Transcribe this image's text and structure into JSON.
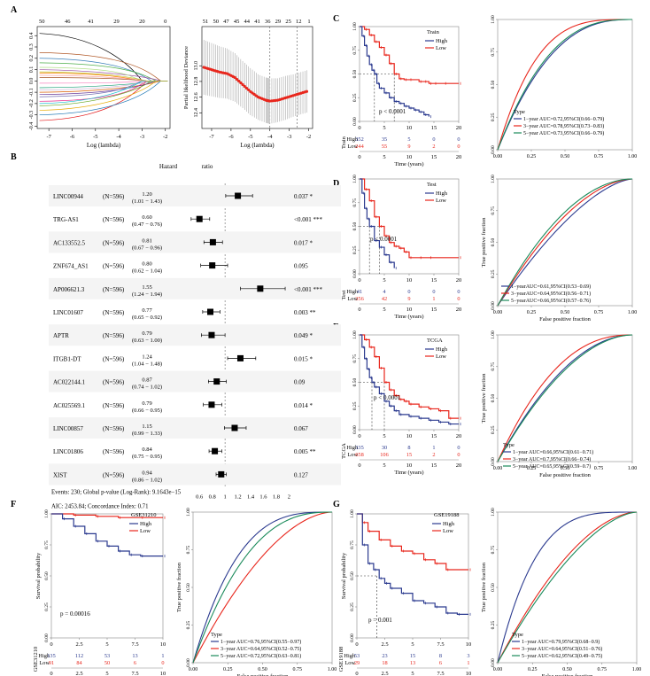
{
  "colors": {
    "high": "#2b3a8f",
    "low": "#e8261c",
    "y1": "#2b3a8f",
    "y3": "#e8261c",
    "y5": "#1a8a5a",
    "grid": "#bbbbbb",
    "lasso_dev": "#e8261c"
  },
  "panels": {
    "A": "A",
    "B": "B",
    "C": "C",
    "D": "D",
    "E": "E",
    "F": "F",
    "G": "G"
  },
  "chart_data": [
    {
      "id": "A_coef",
      "type": "line",
      "title": "",
      "xlabel": "Log (lambda)",
      "ylabel": "",
      "xlim": [
        -7.5,
        -1.8
      ],
      "ylim": [
        -0.42,
        0.48
      ],
      "top_ticks": [
        "50",
        "46",
        "41",
        "29",
        "20",
        "0"
      ],
      "xticks": [
        "-7",
        "-6",
        "-5",
        "-4",
        "-3",
        "-2"
      ],
      "yticks": [
        "0.4",
        "0.3",
        "0.2",
        "0.1",
        "0.0",
        "-0.1",
        "-0.2",
        "-0.3",
        "-0.4"
      ],
      "num_paths": 22
    },
    {
      "id": "A_cv",
      "type": "scatter",
      "title": "",
      "xlabel": "Log (lambda)",
      "ylabel": "Partial likelihood Deviance",
      "xlim": [
        -7.5,
        -1.8
      ],
      "ylim": [
        12.2,
        13.5
      ],
      "top_ticks": [
        "51",
        "50",
        "47",
        "45",
        "44",
        "41",
        "36",
        "29",
        "25",
        "12",
        "1"
      ],
      "xticks": [
        "-7",
        "-6",
        "-5",
        "-4",
        "-3",
        "-2"
      ],
      "yticks": [
        "13.0",
        "12.8",
        "12.6",
        "12.4"
      ],
      "lambda_min": -4.0,
      "lambda_1se": -2.6,
      "x": [
        -7.4,
        -7.0,
        -6.6,
        -6.2,
        -5.8,
        -5.4,
        -5.0,
        -4.6,
        -4.2,
        -4.0,
        -3.6,
        -3.2,
        -2.8,
        -2.4,
        -2.0
      ],
      "y": [
        12.98,
        12.95,
        12.92,
        12.9,
        12.85,
        12.76,
        12.67,
        12.6,
        12.56,
        12.55,
        12.56,
        12.59,
        12.62,
        12.65,
        12.68
      ],
      "err": [
        0.35,
        0.34,
        0.33,
        0.32,
        0.31,
        0.3,
        0.3,
        0.29,
        0.29,
        0.29,
        0.28,
        0.28,
        0.27,
        0.27,
        0.27
      ]
    },
    {
      "id": "B_forest",
      "type": "forest",
      "title": "Hazard ratio",
      "xticks": [
        "0.6",
        "0.8",
        "1",
        "1.2",
        "1.4",
        "1.6",
        "1.8",
        "2"
      ],
      "xlim": [
        0.5,
        2.05
      ],
      "rows": [
        {
          "gene": "LINC00944",
          "n": "(N=596)",
          "hr": "1.20",
          "ci": "(1.01 − 1.43)",
          "hrv": 1.2,
          "lo": 1.01,
          "hi": 1.43,
          "p": "0.037 *"
        },
        {
          "gene": "TRG-AS1",
          "n": "(N=596)",
          "hr": "0.60",
          "ci": "(0.47 − 0.76)",
          "hrv": 0.6,
          "lo": 0.47,
          "hi": 0.76,
          "p": "<0.001 ***"
        },
        {
          "gene": "AC133552.5",
          "n": "(N=596)",
          "hr": "0.81",
          "ci": "(0.67 − 0.96)",
          "hrv": 0.81,
          "lo": 0.67,
          "hi": 0.96,
          "p": "0.017 *"
        },
        {
          "gene": "ZNF674_AS1",
          "n": "(N=596)",
          "hr": "0.80",
          "ci": "(0.62 − 1.04)",
          "hrv": 0.8,
          "lo": 0.62,
          "hi": 1.04,
          "p": "0.095"
        },
        {
          "gene": "AP006621.3",
          "n": "(N=596)",
          "hr": "1.55",
          "ci": "(1.24 − 1.94)",
          "hrv": 1.55,
          "lo": 1.24,
          "hi": 1.94,
          "p": "<0.001 ***"
        },
        {
          "gene": "LINC01607",
          "n": "(N=596)",
          "hr": "0.77",
          "ci": "(0.65 − 0.92)",
          "hrv": 0.77,
          "lo": 0.65,
          "hi": 0.92,
          "p": "0.003 **"
        },
        {
          "gene": "APTR",
          "n": "(N=596)",
          "hr": "0.79",
          "ci": "(0.63 − 1.00)",
          "hrv": 0.79,
          "lo": 0.63,
          "hi": 1.0,
          "p": "0.049 *"
        },
        {
          "gene": "ITGB1-DT",
          "n": "(N=596)",
          "hr": "1.24",
          "ci": "(1.04 − 1.48)",
          "hrv": 1.24,
          "lo": 1.04,
          "hi": 1.48,
          "p": "0.015 *"
        },
        {
          "gene": "AC022144.1",
          "n": "(N=596)",
          "hr": "0.87",
          "ci": "(0.74 − 1.02)",
          "hrv": 0.87,
          "lo": 0.74,
          "hi": 1.02,
          "p": "0.09"
        },
        {
          "gene": "AC025569.1",
          "n": "(N=596)",
          "hr": "0.79",
          "ci": "(0.66 − 0.95)",
          "hrv": 0.79,
          "lo": 0.66,
          "hi": 0.95,
          "p": "0.014 *"
        },
        {
          "gene": "LINC00857",
          "n": "(N=596)",
          "hr": "1.15",
          "ci": "(0.99 − 1.33)",
          "hrv": 1.15,
          "lo": 0.99,
          "hi": 1.33,
          "p": "0.067"
        },
        {
          "gene": "LINC01806",
          "n": "(N=596)",
          "hr": "0.84",
          "ci": "(0.75 − 0.95)",
          "hrv": 0.84,
          "lo": 0.75,
          "hi": 0.95,
          "p": "0.005 **"
        },
        {
          "gene": "XIST",
          "n": "(N=596)",
          "hr": "0.94",
          "ci": "(0.86 − 1.02)",
          "hrv": 0.94,
          "lo": 0.86,
          "hi": 1.02,
          "p": "0.127"
        }
      ],
      "footer1": "Events: 230; Global p-value (Log-Rank): 9.1643e−15",
      "footer2": "AIC: 2453.84; Concordance Index: 0.71"
    },
    {
      "id": "C_km",
      "type": "line",
      "legend_title": "Train",
      "legend": [
        "High",
        "Low"
      ],
      "xlabel": "Time (years)",
      "ylabel": "",
      "xlim": [
        0,
        20
      ],
      "ylim": [
        0,
        1
      ],
      "xticks": [
        "0",
        "5",
        "10",
        "15",
        "20"
      ],
      "yticks": [
        "1.00",
        "0.75",
        "0.50",
        "0.25",
        "0.00"
      ],
      "pvalue": "p < 0.0001",
      "median_high": 3,
      "median_low": 7,
      "high": {
        "x": [
          0,
          0.5,
          1,
          1.5,
          2,
          2.5,
          3,
          3.5,
          4,
          5,
          6,
          7,
          8,
          9,
          10,
          11,
          12,
          13,
          14
        ],
        "y": [
          1,
          0.9,
          0.8,
          0.69,
          0.6,
          0.54,
          0.5,
          0.4,
          0.35,
          0.3,
          0.25,
          0.21,
          0.19,
          0.16,
          0.14,
          0.12,
          0.1,
          0.07,
          0.05
        ]
      },
      "low": {
        "x": [
          0,
          1,
          2,
          3,
          4,
          5,
          6,
          7,
          8,
          9,
          10,
          12,
          13,
          14,
          15,
          17,
          20
        ],
        "y": [
          1,
          0.97,
          0.91,
          0.84,
          0.78,
          0.7,
          0.61,
          0.5,
          0.45,
          0.44,
          0.44,
          0.42,
          0.42,
          0.4,
          0.4,
          0.4,
          0.4
        ]
      },
      "risk_table": {
        "label": "Train",
        "rows": [
          {
            "name": "High",
            "vals": [
              "352",
              "35",
              "5",
              "0",
              "0"
            ]
          },
          {
            "name": "Low",
            "vals": [
              "244",
              "55",
              "9",
              "2",
              "0"
            ]
          }
        ]
      }
    },
    {
      "id": "C_roc",
      "type": "line",
      "legend_title": "Type",
      "legend": [
        "1−year  AUC=0.72,95%CI(0.66−0.79)",
        "3−year  AUC=0.78,95%CI(0.73−0.83)",
        "5−year  AUC=0.73,95%CI(0.66−0.79)"
      ],
      "auc": [
        0.72,
        0.78,
        0.73
      ],
      "xlabel": "",
      "ylabel": "",
      "xticks": [
        "0.00",
        "0.25",
        "0.50",
        "0.75",
        "1.00"
      ],
      "yticks": [
        "1.00",
        "0.75",
        "0.50",
        "0.25",
        "0.00"
      ]
    },
    {
      "id": "D_km",
      "type": "line",
      "legend_title": "Test",
      "legend": [
        "High",
        "Low"
      ],
      "xlabel": "Time (years)",
      "ylabel": "",
      "xlim": [
        0,
        20
      ],
      "ylim": [
        0,
        1
      ],
      "xticks": [
        "0",
        "5",
        "10",
        "15",
        "20"
      ],
      "yticks": [
        "1.00",
        "0.75",
        "0.50",
        "0.25",
        "0.00"
      ],
      "pvalue": "p < 0.0001",
      "median_high": 2,
      "median_low": 4,
      "high": {
        "x": [
          0,
          0.5,
          1,
          1.5,
          2,
          3,
          4,
          5,
          6,
          7
        ],
        "y": [
          1,
          0.85,
          0.69,
          0.58,
          0.5,
          0.35,
          0.28,
          0.2,
          0.12,
          0.06
        ]
      },
      "low": {
        "x": [
          0,
          1,
          2,
          3,
          4,
          5,
          6,
          7,
          8,
          9,
          10,
          12,
          14,
          20
        ],
        "y": [
          1,
          0.89,
          0.77,
          0.6,
          0.5,
          0.4,
          0.33,
          0.29,
          0.27,
          0.23,
          0.17,
          0.17,
          0.17,
          0.17
        ]
      },
      "risk_table": {
        "label": "Test",
        "rows": [
          {
            "name": "High",
            "vals": [
              "41",
              "4",
              "0",
              "0",
              "0"
            ]
          },
          {
            "name": "Low",
            "vals": [
              "356",
              "42",
              "9",
              "1",
              "0"
            ]
          }
        ]
      }
    },
    {
      "id": "D_roc",
      "type": "line",
      "legend": [
        "1−yearAUC=0.61,95%CI(0.53−0.69)",
        "3−yearAUC=0.64,95%CI(0.56−0.71)",
        "5−yearAUC=0.66,95%CI(0.57−0.76)"
      ],
      "auc": [
        0.61,
        0.64,
        0.66
      ],
      "xlabel": "False positive fraction",
      "ylabel": "True positive fraction",
      "xticks": [
        "0.00",
        "0.25",
        "0.50",
        "0.75",
        "1.00"
      ],
      "yticks": [
        "1.00",
        "0.75",
        "0.50",
        "0.25",
        "0.00"
      ]
    },
    {
      "id": "E_km",
      "type": "line",
      "legend_title": "TCGA",
      "legend": [
        "High",
        "Low"
      ],
      "xlabel": "Time (years)",
      "ylabel": "",
      "xlim": [
        0,
        20
      ],
      "ylim": [
        0,
        1
      ],
      "xticks": [
        "0",
        "5",
        "10",
        "15",
        "20"
      ],
      "yticks": [
        "1.00",
        "0.75",
        "0.50",
        "0.25",
        "0.00"
      ],
      "pvalue": "p < 0.0001",
      "median_high": 2.5,
      "median_low": 5,
      "high": {
        "x": [
          0,
          0.5,
          1,
          1.5,
          2,
          2.5,
          3,
          4,
          5,
          6,
          7,
          8,
          10,
          12,
          14,
          16,
          18,
          20
        ],
        "y": [
          1,
          0.87,
          0.75,
          0.64,
          0.55,
          0.5,
          0.45,
          0.38,
          0.3,
          0.25,
          0.2,
          0.16,
          0.14,
          0.12,
          0.1,
          0.08,
          0.06,
          0.06
        ]
      },
      "low": {
        "x": [
          0,
          1,
          2,
          3,
          4,
          5,
          6,
          7,
          8,
          9,
          10,
          12,
          14,
          16,
          18,
          20
        ],
        "y": [
          1,
          0.95,
          0.87,
          0.77,
          0.65,
          0.5,
          0.42,
          0.36,
          0.32,
          0.3,
          0.27,
          0.24,
          0.22,
          0.2,
          0.12,
          0.12
        ]
      },
      "risk_table": {
        "label": "TCGA",
        "rows": [
          {
            "name": "High",
            "vals": [
              "335",
              "30",
              "8",
              "1",
              "0"
            ]
          },
          {
            "name": "Low",
            "vals": [
              "658",
              "106",
              "15",
              "2",
              "0"
            ]
          }
        ]
      }
    },
    {
      "id": "E_roc",
      "type": "line",
      "legend_title": "Type",
      "legend": [
        "1−year  AUC=0.66,95%CI(0.61−0.71)",
        "3−year  AUC=0.7,95%CI(0.66−0.74)",
        "5−year  AUC=0.65,95%CI(0.59−0.7)"
      ],
      "auc": [
        0.66,
        0.7,
        0.65
      ],
      "xlabel": "False positive fraction",
      "ylabel": "True positive fraction",
      "xticks": [
        "0.00",
        "0.25",
        "0.50",
        "0.75",
        "1.00"
      ],
      "yticks": [
        "1.00",
        "0.75",
        "0.50",
        "0.25",
        "0.00"
      ]
    },
    {
      "id": "F_km",
      "type": "line",
      "legend_title": "GSE31210",
      "legend": [
        "High",
        "Low"
      ],
      "xlabel": "Time (years)",
      "ylabel": "Survival probability",
      "xlim": [
        0,
        10
      ],
      "ylim": [
        0,
        1
      ],
      "xticks": [
        "0",
        "2.5",
        "5",
        "7.5",
        "10"
      ],
      "yticks": [
        "1.00",
        "0.75",
        "0.50",
        "0.25",
        "0.00"
      ],
      "pvalue": "p = 0.00016",
      "high": {
        "x": [
          0,
          1,
          2,
          3,
          4,
          5,
          6,
          7,
          8,
          10
        ],
        "y": [
          1,
          0.96,
          0.9,
          0.84,
          0.78,
          0.74,
          0.7,
          0.67,
          0.66,
          0.66
        ]
      },
      "low": {
        "x": [
          0,
          2,
          4,
          6,
          8,
          10
        ],
        "y": [
          1,
          0.99,
          0.98,
          0.97,
          0.97,
          0.97
        ]
      },
      "risk_table": {
        "label": "GSE31210",
        "rows": [
          {
            "name": "High",
            "vals": [
              "135",
              "112",
              "53",
              "13",
              "1"
            ]
          },
          {
            "name": "Low",
            "vals": [
              "91",
              "84",
              "50",
              "6",
              "0"
            ]
          }
        ]
      }
    },
    {
      "id": "F_roc",
      "type": "line",
      "legend_title": "Type",
      "legend": [
        "1−year  AUC=0.76,95%CI(0.55−0.97)",
        "3−year  AUC=0.64,95%CI(0.52−0.75)",
        "5−year  AUC=0.72,95%CI(0.63−0.81)"
      ],
      "auc": [
        0.76,
        0.64,
        0.72
      ],
      "xlabel": "False positive fraction",
      "ylabel": "True positive fraction",
      "xticks": [
        "0.00",
        "0.25",
        "0.50",
        "0.75",
        "1.00"
      ],
      "yticks": [
        "1.00",
        "0.75",
        "0.50",
        "0.25",
        "0.00"
      ]
    },
    {
      "id": "G_km",
      "type": "line",
      "legend_title": "GSE19188",
      "legend": [
        "High",
        "Low"
      ],
      "xlabel": "Time (years)",
      "ylabel": "Survival probability",
      "xlim": [
        0,
        10
      ],
      "ylim": [
        0,
        1
      ],
      "xticks": [
        "0",
        "2.5",
        "5",
        "7.5",
        "10"
      ],
      "yticks": [
        "1.00",
        "0.75",
        "0.50",
        "0.25",
        "0.00"
      ],
      "pvalue": "p = 0.001",
      "median_high": 1.8,
      "high": {
        "x": [
          0,
          0.5,
          1,
          1.5,
          2,
          2.5,
          3,
          4,
          5,
          6,
          7,
          8,
          9,
          10
        ],
        "y": [
          1,
          0.75,
          0.6,
          0.55,
          0.48,
          0.44,
          0.4,
          0.36,
          0.3,
          0.28,
          0.25,
          0.2,
          0.19,
          0.19
        ]
      },
      "low": {
        "x": [
          0,
          0.5,
          1,
          2,
          3,
          4,
          5,
          6,
          7,
          8,
          10
        ],
        "y": [
          1,
          0.93,
          0.86,
          0.79,
          0.74,
          0.7,
          0.68,
          0.63,
          0.6,
          0.55,
          0.55
        ]
      },
      "risk_table": {
        "label": "GSE19188",
        "rows": [
          {
            "name": "High",
            "vals": [
              "53",
              "23",
              "15",
              "8",
              "3"
            ]
          },
          {
            "name": "Low",
            "vals": [
              "29",
              "18",
              "13",
              "6",
              "1"
            ]
          }
        ]
      }
    },
    {
      "id": "G_roc",
      "type": "line",
      "legend_title": "Type",
      "legend": [
        "1−year  AUC=0.79,95%CI(0.68−0.9)",
        "3−year  AUC=0.64,95%CI(0.51−0.76)",
        "5−year  AUC=0.62,95%CI(0.49−0.75)"
      ],
      "auc": [
        0.79,
        0.64,
        0.62
      ],
      "xlabel": "False positive fraction",
      "ylabel": "True positive fraction",
      "xticks": [
        "0.00",
        "0.25",
        "0.50",
        "0.75",
        "1.00"
      ],
      "yticks": [
        "1.00",
        "0.75",
        "0.50",
        "0.25",
        "0.00"
      ]
    }
  ]
}
